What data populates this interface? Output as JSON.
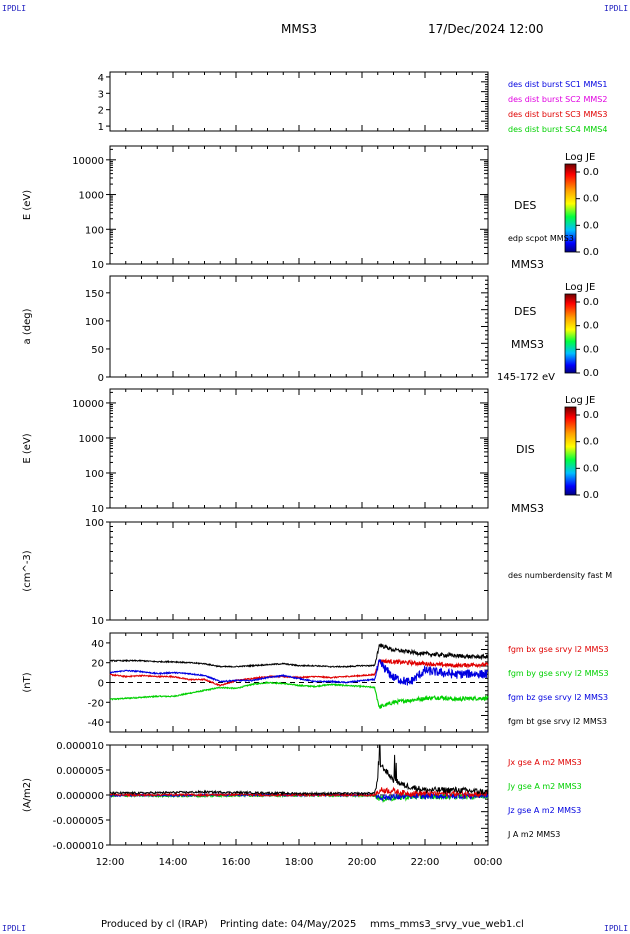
{
  "header": {
    "corner_label": "IPDLI",
    "spacecraft": "MMS3",
    "date_time": "17/Dec/2024 12:00"
  },
  "footer": {
    "produced_by": "Produced by cl (IRAP)",
    "printing_date": "Printing date: 04/May/2025",
    "plot_name": "mms_mms3_srvy_vue_web1.cl"
  },
  "colors": {
    "mms1": "#0000e0",
    "mms2": "#e000e0",
    "mms3": "#e00000",
    "mms4": "#00d000",
    "black": "#000000"
  },
  "chart_data": [
    {
      "type": "line",
      "panel": "spacecraft",
      "ylabel": "",
      "yticks": [
        "4",
        "3",
        "2",
        "1"
      ],
      "ylim": [
        0.7,
        4.3
      ],
      "legend": [
        {
          "label": "des dist burst SC1 MMS1",
          "color": "#0000e0"
        },
        {
          "label": "des dist burst SC2 MMS2",
          "color": "#e000e0"
        },
        {
          "label": "des dist burst SC3 MMS3",
          "color": "#e00000"
        },
        {
          "label": "des dist burst SC4 MMS4",
          "color": "#00d000"
        }
      ],
      "series": []
    },
    {
      "type": "heatmap",
      "panel": "des-energy",
      "ylabel": "E (eV)",
      "scale": "log",
      "yticks": [
        "10000",
        "1000",
        "100",
        "10"
      ],
      "ylim": [
        10,
        25000
      ],
      "right_labels": [
        "DES",
        "edp scpot MMS3",
        "MMS3"
      ],
      "colorbar": {
        "title": "Log JE",
        "ticks": [
          "0.0",
          "0.0",
          "0.0",
          "0.0"
        ]
      },
      "values": []
    },
    {
      "type": "heatmap",
      "panel": "des-pitch",
      "ylabel": "a (deg)",
      "yticks": [
        "150",
        "100",
        "50",
        "0"
      ],
      "ylim": [
        0,
        180
      ],
      "right_labels": [
        "DES",
        "MMS3",
        "145-172 eV"
      ],
      "colorbar": {
        "title": "Log JE",
        "ticks": [
          "0.0",
          "0.0",
          "0.0",
          "0.0"
        ]
      },
      "values": []
    },
    {
      "type": "heatmap",
      "panel": "dis-energy",
      "ylabel": "E (eV)",
      "scale": "log",
      "yticks": [
        "10000",
        "1000",
        "100",
        "10"
      ],
      "ylim": [
        10,
        25000
      ],
      "right_labels": [
        "DIS",
        "MMS3"
      ],
      "colorbar": {
        "title": "Log JE",
        "ticks": [
          "0.0",
          "0.0",
          "0.0",
          "0.0"
        ]
      },
      "values": []
    },
    {
      "type": "line",
      "panel": "density",
      "ylabel": "(cm^-3)",
      "scale": "log",
      "yticks": [
        "100",
        "10"
      ],
      "ylim": [
        10,
        100
      ],
      "legend": [
        {
          "label": "des numberdensity fast M",
          "color": "#000000"
        }
      ],
      "series": []
    },
    {
      "type": "line",
      "panel": "fgm",
      "ylabel": "(nT)",
      "yticks": [
        "40",
        "20",
        "0",
        "-20",
        "-40"
      ],
      "ylim": [
        -50,
        50
      ],
      "x": [
        12,
        12.5,
        13,
        13.5,
        14,
        14.5,
        15,
        15.5,
        16,
        16.5,
        17,
        17.5,
        18,
        18.5,
        19,
        19.5,
        20,
        20.4,
        20.55,
        21,
        21.5,
        22,
        22.5,
        23,
        23.5,
        24
      ],
      "series": [
        {
          "name": "fgm bx gse srvy l2 MMS3",
          "color": "#e00000",
          "values": [
            8,
            6,
            7,
            6,
            6,
            3,
            3,
            -3,
            2,
            4,
            6,
            6,
            5,
            6,
            5,
            6,
            7,
            8,
            22,
            21,
            20,
            19,
            18,
            17,
            18,
            18
          ]
        },
        {
          "name": "fgm by gse srvy l2 MMS3",
          "color": "#00d000",
          "values": [
            -17,
            -16,
            -15,
            -14,
            -14,
            -11,
            -8,
            -5,
            -6,
            -2,
            0,
            -1,
            -3,
            -4,
            -2,
            -3,
            -4,
            -5,
            -25,
            -20,
            -18,
            -16,
            -15,
            -17,
            -16,
            -16
          ]
        },
        {
          "name": "fgm bz gse srvy l2 MMS3",
          "color": "#0000e0",
          "values": [
            10,
            12,
            11,
            9,
            10,
            9,
            7,
            1,
            2,
            2,
            5,
            7,
            4,
            1,
            1,
            0,
            2,
            3,
            20,
            5,
            0,
            12,
            10,
            8,
            9,
            8
          ]
        },
        {
          "name": "fgm bt gse srvy l2 MMS3",
          "color": "#000000",
          "values": [
            22,
            22,
            22,
            21,
            21,
            20,
            19,
            16,
            16,
            17,
            18,
            19,
            17,
            17,
            16,
            16,
            17,
            17,
            38,
            33,
            31,
            29,
            28,
            27,
            26,
            26
          ]
        }
      ]
    },
    {
      "type": "line",
      "panel": "current",
      "ylabel": "(A/m2)",
      "yticks": [
        "0.000010",
        "0.000005",
        "0.000000",
        "-0.000005",
        "-0.000010"
      ],
      "ylim": [
        -1e-05,
        1e-05
      ],
      "x": [
        12,
        13,
        14,
        15,
        16,
        17,
        18,
        19,
        20,
        20.4,
        20.6,
        21,
        21.3,
        22,
        23,
        24
      ],
      "series": [
        {
          "name": "Jx gse A m2 MMS3",
          "color": "#e00000",
          "values": [
            1e-07,
            0,
            1e-07,
            0,
            1e-07,
            0,
            0,
            0,
            0,
            0,
            1e-06,
            8e-07,
            4e-07,
            3e-07,
            3e-07,
            2e-07
          ]
        },
        {
          "name": "Jy gse A m2 MMS3",
          "color": "#00d000",
          "values": [
            -2e-07,
            -1e-07,
            -2e-07,
            -2e-07,
            -1e-07,
            -1e-07,
            -1e-07,
            -1e-07,
            -1e-07,
            -1e-07,
            -8e-07,
            -6e-07,
            -4e-07,
            -3e-07,
            -3e-07,
            -2e-07
          ]
        },
        {
          "name": "Jz gse A m2 MMS3",
          "color": "#0000e0",
          "values": [
            -1e-07,
            0,
            -1e-07,
            0,
            0,
            0,
            0,
            0,
            0,
            0,
            -5e-07,
            -4e-07,
            -3e-07,
            -2e-07,
            -2e-07,
            -1e-07
          ]
        },
        {
          "name": "J A m2 MMS3",
          "color": "#000000",
          "values": [
            4e-07,
            4e-07,
            5e-07,
            6e-07,
            5e-07,
            4e-07,
            3e-07,
            3e-07,
            3e-07,
            4e-07,
            6e-06,
            3e-06,
            2e-06,
            1e-06,
            1e-06,
            6e-07
          ]
        }
      ]
    }
  ],
  "xaxis": {
    "ticks": [
      "12:00",
      "14:00",
      "16:00",
      "18:00",
      "20:00",
      "22:00",
      "00:00"
    ],
    "xlim": [
      12,
      24
    ]
  }
}
